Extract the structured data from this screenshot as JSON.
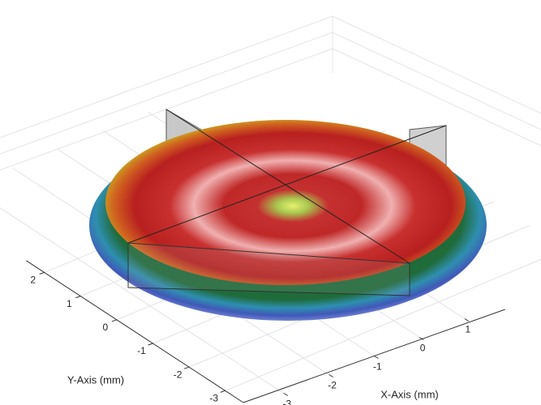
{
  "chart_data": {
    "type": "surface",
    "xlabel": "X-Axis (mm)",
    "ylabel": "Y-Axis (mm)",
    "xlim": [
      -3.5,
      1.5
    ],
    "xticks": [
      -3,
      -2,
      -1,
      0,
      1
    ],
    "ylim": [
      -3.5,
      2.5
    ],
    "yticks": [
      -3,
      -2,
      -1,
      0,
      1,
      2
    ],
    "grid": true
  }
}
